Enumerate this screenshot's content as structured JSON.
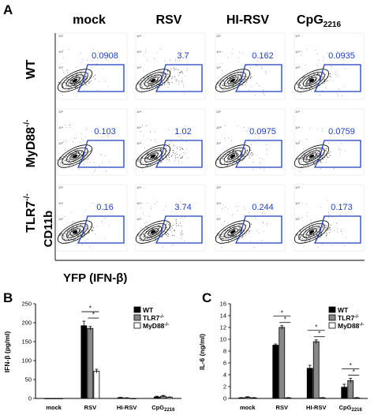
{
  "panel_a": {
    "label": "A",
    "columns": [
      "mock",
      "RSV",
      "HI-RSV",
      "CpG"
    ],
    "cpg_subscript": "2216",
    "rows": [
      {
        "name": "WT",
        "sup": ""
      },
      {
        "name": "MyD88",
        "sup": "-/-"
      },
      {
        "name": "TLR7",
        "sup": "-/-"
      }
    ],
    "gate_values": [
      [
        "0.0908",
        "3.7",
        "0.162",
        "0.0935"
      ],
      [
        "0.103",
        "1.02",
        "0.0975",
        "0.0759"
      ],
      [
        "0.16",
        "3.74",
        "0.244",
        "0.173"
      ]
    ],
    "x_axis_label": "YFP (IFN-β)",
    "y_axis_label": "CD11b"
  },
  "panel_b": {
    "label": "B",
    "ylabel": "IFN-β (pg/ml)"
  },
  "panel_c": {
    "label": "C",
    "ylabel": "IL-6 (ng/ml)"
  },
  "legend": [
    {
      "name": "WT",
      "sup": "",
      "color": "#000000"
    },
    {
      "name": "TLR7",
      "sup": "-/-",
      "color": "#888888"
    },
    {
      "name": "MyD88",
      "sup": "-/-",
      "color": "#ffffff"
    }
  ],
  "chart_data": [
    {
      "type": "bar",
      "panel": "B",
      "categories": [
        "mock",
        "RSV",
        "HI-RSV",
        "CpG2216"
      ],
      "series": [
        {
          "name": "WT",
          "values": [
            0,
            192,
            2,
            4
          ]
        },
        {
          "name": "TLR7-/-",
          "values": [
            0,
            185,
            1,
            6
          ]
        },
        {
          "name": "MyD88-/-",
          "values": [
            0,
            72,
            0,
            3
          ]
        }
      ],
      "errors": [
        [
          0,
          12,
          1,
          2
        ],
        [
          0,
          5,
          1,
          2
        ],
        [
          0,
          5,
          0,
          1
        ]
      ],
      "ylabel": "IFN-β (pg/ml)",
      "yticks": [
        0,
        50,
        100,
        150,
        200,
        250
      ],
      "ylim": [
        0,
        250
      ],
      "significance": [
        {
          "category": "RSV",
          "from": 0,
          "to": 2,
          "label": "*"
        },
        {
          "category": "RSV",
          "from": 1,
          "to": 2,
          "label": "*"
        }
      ]
    },
    {
      "type": "bar",
      "panel": "C",
      "categories": [
        "mock",
        "RSV",
        "HI-RSV",
        "CpG2216"
      ],
      "series": [
        {
          "name": "WT",
          "values": [
            0.1,
            9.0,
            5.1,
            1.9
          ]
        },
        {
          "name": "TLR7-/-",
          "values": [
            0.2,
            12.0,
            9.6,
            3.0
          ]
        },
        {
          "name": "MyD88-/-",
          "values": [
            0.1,
            0.1,
            0.1,
            0.1
          ]
        }
      ],
      "errors": [
        [
          0.05,
          0.2,
          0.5,
          0.5
        ],
        [
          0.1,
          0.3,
          0.3,
          0.4
        ],
        [
          0.05,
          0.05,
          0.05,
          0.05
        ]
      ],
      "ylabel": "IL-6 (ng/ml)",
      "yticks": [
        0,
        2,
        4,
        6,
        8,
        10,
        12,
        14,
        16
      ],
      "ylim": [
        0,
        16
      ],
      "significance": [
        {
          "category": "RSV",
          "from": 0,
          "to": 2,
          "label": "*"
        },
        {
          "category": "RSV",
          "from": 1,
          "to": 2,
          "label": "*"
        },
        {
          "category": "HI-RSV",
          "from": 0,
          "to": 2,
          "label": "*"
        },
        {
          "category": "HI-RSV",
          "from": 1,
          "to": 2,
          "label": "*"
        },
        {
          "category": "CpG2216",
          "from": 0,
          "to": 2,
          "label": "*"
        },
        {
          "category": "CpG2216",
          "from": 1,
          "to": 2,
          "label": "*"
        }
      ]
    }
  ]
}
